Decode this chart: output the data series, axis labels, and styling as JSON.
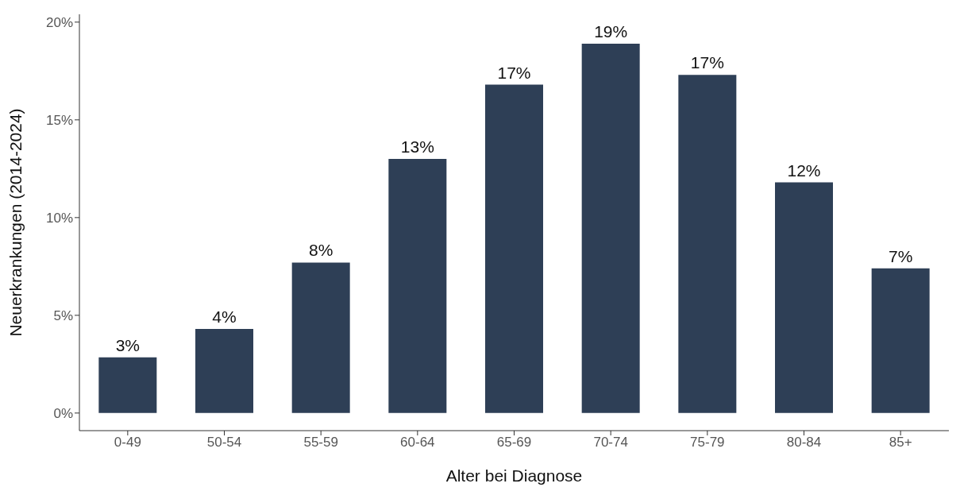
{
  "chart_data": {
    "type": "bar",
    "xlabel": "Alter bei Diagnose",
    "ylabel": "Neuerkrankungen (2014-2024)",
    "categories": [
      "0-49",
      "50-54",
      "55-59",
      "60-64",
      "65-69",
      "70-74",
      "75-79",
      "80-84",
      "85+"
    ],
    "values": [
      2.85,
      4.3,
      7.7,
      13.0,
      16.8,
      18.9,
      17.3,
      11.8,
      7.4
    ],
    "value_labels": [
      "3%",
      "4%",
      "8%",
      "13%",
      "17%",
      "19%",
      "17%",
      "12%",
      "7%"
    ],
    "color": "#2e3f56",
    "ylim": [
      -0.9,
      20.4
    ],
    "yticks": [
      {
        "value": 0,
        "label": "0%"
      },
      {
        "value": 5,
        "label": "5%"
      },
      {
        "value": 10,
        "label": "10%"
      },
      {
        "value": 15,
        "label": "15%"
      },
      {
        "value": 20,
        "label": "20%"
      }
    ],
    "grid": false,
    "legend": false
  }
}
